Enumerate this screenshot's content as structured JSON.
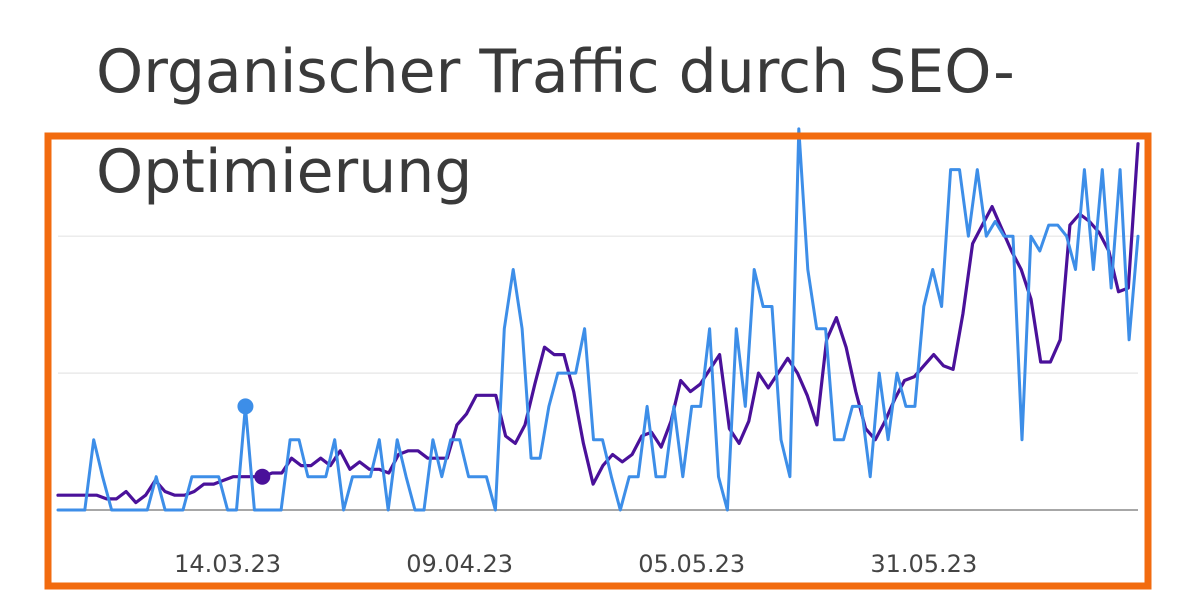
{
  "title_lines": [
    "Organischer Traffic durch SEO-",
    "Optimierung"
  ],
  "colors": {
    "frame": "#f26b0f",
    "series_dark": "#4a119a",
    "series_light": "#3d8ee8",
    "grid": "#e5e5e5",
    "baseline": "#8a8a8a"
  },
  "chart_data": {
    "type": "line",
    "title": "Organischer Traffic durch SEO-Optimierung",
    "xlabel": "",
    "ylabel": "",
    "x_ticks": [
      "14.03.23",
      "09.04.23",
      "05.05.23",
      "31.05.23"
    ],
    "x_tick_index": [
      19,
      45,
      71,
      97
    ],
    "ylim": [
      0,
      100
    ],
    "y_gridlines": [
      0,
      37,
      74
    ],
    "grid": true,
    "legend": "none",
    "series": [
      {
        "color": "#4a119a",
        "values": [
          4,
          4,
          4,
          4,
          4,
          3,
          3,
          5,
          2,
          4,
          8,
          5,
          4,
          4,
          5,
          7,
          7,
          8,
          9,
          9,
          9,
          9,
          10,
          10,
          14,
          12,
          12,
          14,
          12,
          16,
          11,
          13,
          11,
          11,
          10,
          15,
          16,
          16,
          14,
          14,
          14,
          23,
          26,
          31,
          31,
          31,
          20,
          18,
          23,
          34,
          44,
          42,
          42,
          32,
          18,
          7,
          12,
          15,
          13,
          15,
          20,
          21,
          17,
          24,
          35,
          32,
          34,
          38,
          42,
          22,
          18,
          24,
          37,
          33,
          37,
          41,
          37,
          31,
          23,
          46,
          52,
          44,
          32,
          22,
          19,
          24,
          30,
          35,
          36,
          39,
          42,
          39,
          38,
          53,
          72,
          77,
          82,
          76,
          70,
          65,
          57,
          40,
          40,
          46,
          77,
          80,
          78,
          75,
          70,
          59,
          60,
          99
        ]
      },
      {
        "color": "#3d8ee8",
        "values": [
          0,
          0,
          0,
          0,
          19,
          9,
          0,
          0,
          0,
          0,
          0,
          9,
          0,
          0,
          0,
          9,
          9,
          9,
          9,
          0,
          0,
          28,
          0,
          0,
          0,
          0,
          19,
          19,
          9,
          9,
          9,
          19,
          0,
          9,
          9,
          9,
          19,
          0,
          19,
          9,
          0,
          0,
          19,
          9,
          19,
          19,
          9,
          9,
          9,
          0,
          49,
          65,
          49,
          14,
          14,
          28,
          37,
          37,
          37,
          49,
          19,
          19,
          9,
          0,
          9,
          9,
          28,
          9,
          9,
          28,
          9,
          28,
          28,
          49,
          9,
          0,
          49,
          28,
          65,
          55,
          55,
          19,
          9,
          103,
          65,
          49,
          49,
          19,
          19,
          28,
          28,
          9,
          37,
          19,
          37,
          28,
          28,
          55,
          65,
          55,
          92,
          92,
          74,
          92,
          74,
          78,
          74,
          74,
          19,
          74,
          70,
          77,
          77,
          74,
          65,
          92,
          65,
          92,
          60,
          92,
          46,
          74
        ]
      }
    ]
  }
}
